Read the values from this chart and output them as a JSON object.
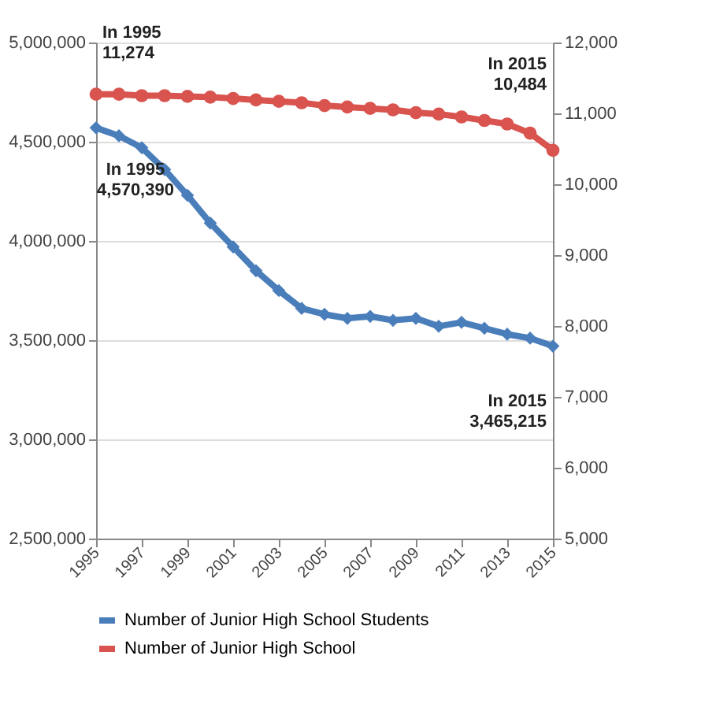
{
  "chart_data": {
    "type": "line",
    "x": [
      1995,
      1996,
      1997,
      1998,
      1999,
      2000,
      2001,
      2002,
      2003,
      2004,
      2005,
      2006,
      2007,
      2008,
      2009,
      2010,
      2011,
      2012,
      2013,
      2014,
      2015
    ],
    "xlim": [
      1995,
      2015
    ],
    "xticks": [
      1995,
      1997,
      1999,
      2001,
      2003,
      2005,
      2007,
      2009,
      2011,
      2013,
      2015
    ],
    "ylim": [
      2500000,
      5000000
    ],
    "yticks": [
      {
        "value": 2500000,
        "label": "2,500,000"
      },
      {
        "value": 3000000,
        "label": "3,000,000"
      },
      {
        "value": 3500000,
        "label": "3,500,000"
      },
      {
        "value": 4000000,
        "label": "4,000,000"
      },
      {
        "value": 4500000,
        "label": "4,500,000"
      },
      {
        "value": 5000000,
        "label": "5,000,000"
      }
    ],
    "y2lim": [
      5000,
      12000
    ],
    "y2ticks": [
      {
        "value": 5000,
        "label": "5,000"
      },
      {
        "value": 6000,
        "label": "6,000"
      },
      {
        "value": 7000,
        "label": "7,000"
      },
      {
        "value": 8000,
        "label": "8,000"
      },
      {
        "value": 9000,
        "label": "9,000"
      },
      {
        "value": 10000,
        "label": "10,000"
      },
      {
        "value": 11000,
        "label": "11,000"
      },
      {
        "value": 12000,
        "label": "12,000"
      }
    ],
    "grid": "y",
    "legend": "bottom",
    "series": [
      {
        "name": "Number of Junior High School Students",
        "color": "#4a7ebb",
        "marker": "diamond",
        "values": [
          4570000,
          4530000,
          4470000,
          4360000,
          4230000,
          4090000,
          3970000,
          3850000,
          3750000,
          3660000,
          3630000,
          3610000,
          3620000,
          3600000,
          3610000,
          3570000,
          3590000,
          3560000,
          3530000,
          3510000,
          3470000
        ]
      },
      {
        "name": "Number of Junior High School",
        "color": "#d9534f",
        "marker": "circle",
        "axis": "y2",
        "values": [
          11270,
          11270,
          11250,
          11250,
          11240,
          11230,
          11210,
          11190,
          11170,
          11150,
          11110,
          11090,
          11070,
          11050,
          11010,
          10990,
          10950,
          10900,
          10850,
          10720,
          10480
        ]
      }
    ],
    "annotations": [
      "In 1995\n11,274",
      "In 2015\n10,484",
      "In 1995\n4,570,390",
      "In 2015\n3,465,215"
    ]
  }
}
